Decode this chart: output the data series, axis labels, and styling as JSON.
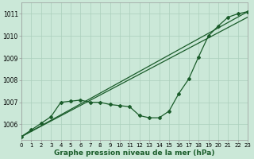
{
  "title": "Graphe pression niveau de la mer (hPa)",
  "bg_color": "#cbe8d8",
  "grid_color": "#aacfbc",
  "line_color": "#1a5c2a",
  "ylim": [
    1005.3,
    1011.5
  ],
  "xlim": [
    0,
    23
  ],
  "yticks": [
    1006,
    1007,
    1008,
    1009,
    1010,
    1011
  ],
  "ytick_labels": [
    "1006",
    "1007",
    "1008",
    "1009",
    "1010",
    "1011"
  ],
  "xtick_labels": [
    "0",
    "1",
    "2",
    "3",
    "4",
    "5",
    "6",
    "7",
    "8",
    "9",
    "10",
    "11",
    "12",
    "13",
    "14",
    "15",
    "16",
    "17",
    "18",
    "19",
    "20",
    "21",
    "22",
    "23"
  ],
  "main_data_x": [
    0,
    1,
    2,
    3,
    4,
    5,
    6,
    7,
    8,
    9,
    10,
    11,
    12,
    13,
    14,
    15,
    16,
    17,
    18,
    19,
    20,
    21,
    22,
    23
  ],
  "main_data_y": [
    1005.45,
    1005.75,
    1006.05,
    1006.35,
    1007.0,
    1007.05,
    1007.1,
    1007.0,
    1007.0,
    1006.9,
    1006.85,
    1006.8,
    1006.4,
    1006.3,
    1006.3,
    1006.6,
    1007.4,
    1008.05,
    1009.05,
    1010.0,
    1010.45,
    1010.85,
    1011.0,
    1011.1
  ],
  "line2_x": [
    0,
    23
  ],
  "line2_y": [
    1005.45,
    1011.1
  ],
  "line3_x": [
    0,
    23
  ],
  "line3_y": [
    1005.45,
    1010.85
  ],
  "title_fontsize": 6.5,
  "tick_fontsize": 5.0,
  "ytick_fontsize": 5.5
}
